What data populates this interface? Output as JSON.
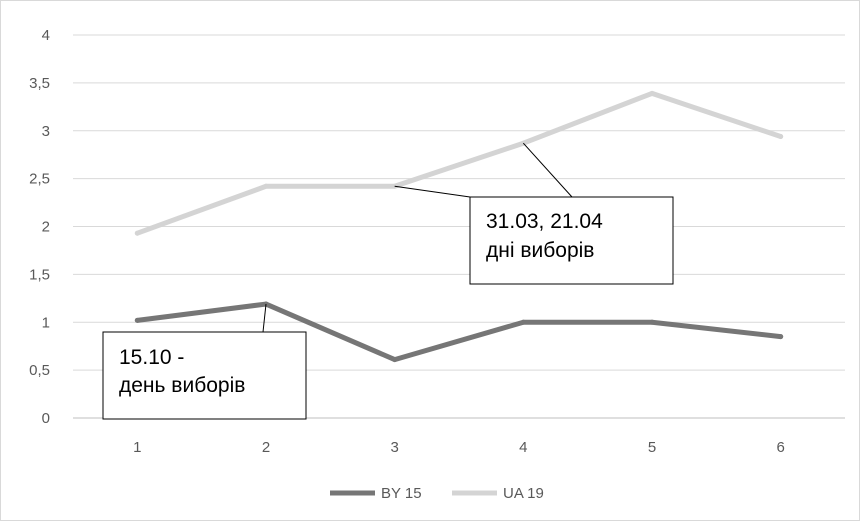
{
  "chart_data": {
    "type": "line",
    "categories": [
      "1",
      "2",
      "3",
      "4",
      "5",
      "6"
    ],
    "y_tick_labels": [
      "0",
      "0,5",
      "1",
      "1,5",
      "2",
      "2,5",
      "3",
      "3,5",
      "4"
    ],
    "ylim": [
      0,
      4
    ],
    "grid": "horizontal",
    "legend_position": "bottom",
    "series": [
      {
        "name": "BY 15",
        "color": "#767676",
        "values": [
          1.02,
          1.19,
          0.61,
          1.0,
          1.0,
          0.85
        ]
      },
      {
        "name": "UA 19",
        "color": "#d4d4d4",
        "values": [
          1.93,
          2.42,
          2.42,
          2.87,
          3.39,
          2.94
        ]
      }
    ],
    "annotations": [
      {
        "id": "ann-by",
        "lines": [
          "15.10 -",
          "день виборів"
        ],
        "series": 0,
        "points": [
          1
        ]
      },
      {
        "id": "ann-ua",
        "lines": [
          "31.03, 21.04",
          "дні виборів"
        ],
        "series": 1,
        "points": [
          2,
          3
        ]
      }
    ]
  }
}
